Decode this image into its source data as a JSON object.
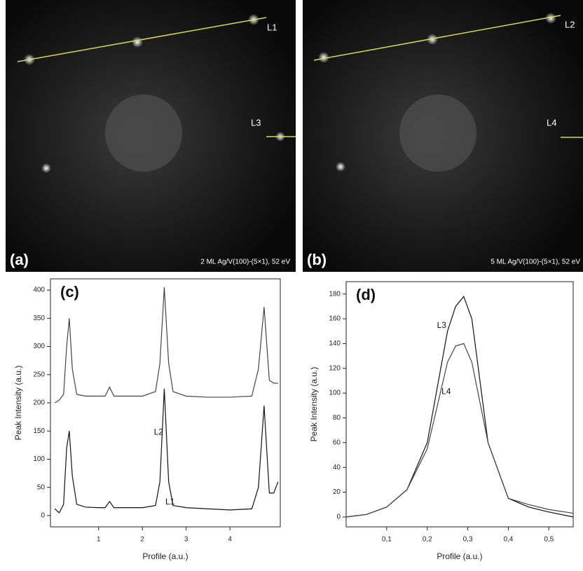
{
  "panels": [
    {
      "label": "(a)",
      "caption": "2 ML Ag/V(100)-(5×1), 52 eV",
      "line_labels": [
        "L1",
        "L3"
      ]
    },
    {
      "label": "(b)",
      "caption": "5 ML Ag/V(100)-(5×1), 52 eV",
      "line_labels": [
        "L2",
        "L4"
      ]
    }
  ],
  "chart_data": [
    {
      "type": "line",
      "title": "(c)",
      "x_label": "Profile (a.u.)",
      "y_label": "Peak Intensity (a.u.)",
      "x": [
        0.0,
        0.1,
        0.2,
        0.27,
        0.33,
        0.4,
        0.5,
        0.7,
        1.0,
        1.15,
        1.25,
        1.35,
        1.6,
        2.0,
        2.3,
        2.4,
        2.5,
        2.6,
        2.7,
        3.0,
        3.5,
        4.0,
        4.5,
        4.65,
        4.78,
        4.9,
        5.0,
        5.1
      ],
      "series": [
        {
          "name": "L2",
          "color": "#444444",
          "values": [
            200,
            205,
            215,
            300,
            350,
            260,
            215,
            212,
            212,
            212,
            228,
            212,
            212,
            212,
            220,
            270,
            405,
            270,
            220,
            212,
            210,
            210,
            212,
            260,
            370,
            240,
            235,
            235
          ]
        },
        {
          "name": "L1",
          "color": "#111111",
          "values": [
            12,
            5,
            20,
            120,
            150,
            70,
            20,
            15,
            14,
            14,
            25,
            14,
            14,
            14,
            18,
            60,
            225,
            60,
            18,
            14,
            12,
            10,
            12,
            50,
            195,
            40,
            40,
            60
          ]
        }
      ],
      "xlim": [
        -0.1,
        5.15
      ],
      "xticks": [
        1,
        2,
        3,
        4
      ],
      "ylim": [
        -20,
        420
      ],
      "yticks": [
        0,
        50,
        100,
        150,
        200,
        250,
        300,
        350,
        400
      ]
    },
    {
      "type": "line",
      "title": "(d)",
      "x_label": "Profile (a.u.)",
      "y_label": "Peak Intensity (a.u.)",
      "x": [
        0,
        0.05,
        0.1,
        0.15,
        0.2,
        0.25,
        0.27,
        0.29,
        0.31,
        0.35,
        0.4,
        0.45,
        0.5,
        0.56
      ],
      "series": [
        {
          "name": "L3",
          "color": "#111111",
          "values": [
            0,
            2,
            8,
            22,
            60,
            150,
            170,
            178,
            160,
            60,
            15,
            8,
            4,
            0
          ]
        },
        {
          "name": "L4",
          "color": "#444444",
          "values": [
            0,
            2,
            8,
            22,
            55,
            125,
            138,
            140,
            125,
            60,
            15,
            10,
            6,
            3
          ]
        }
      ],
      "xlim": [
        0,
        0.56
      ],
      "xticks": [
        {
          "value": 0.1,
          "label": "0,1"
        },
        {
          "value": 0.2,
          "label": "0,2"
        },
        {
          "value": 0.3,
          "label": "0,3"
        },
        {
          "value": 0.4,
          "label": "0,4"
        },
        {
          "value": 0.5,
          "label": "0,5"
        }
      ],
      "ylim": [
        -8,
        190
      ],
      "yticks": [
        0,
        20,
        40,
        60,
        80,
        100,
        120,
        140,
        160,
        180
      ]
    }
  ]
}
